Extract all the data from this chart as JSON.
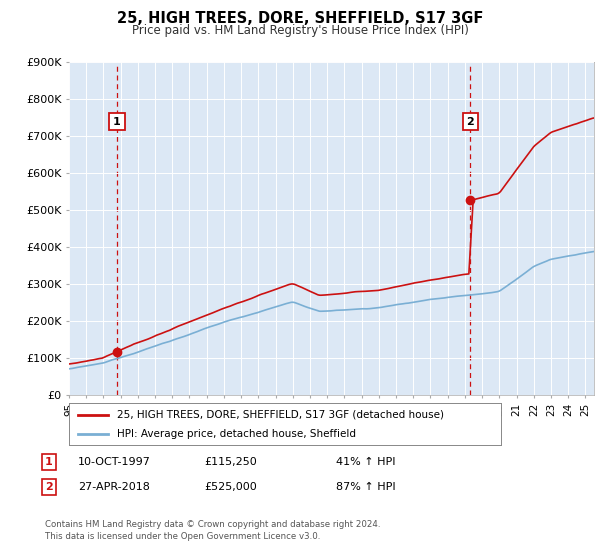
{
  "title": "25, HIGH TREES, DORE, SHEFFIELD, S17 3GF",
  "subtitle": "Price paid vs. HM Land Registry's House Price Index (HPI)",
  "ylim": [
    0,
    900000
  ],
  "yticks": [
    0,
    100000,
    200000,
    300000,
    400000,
    500000,
    600000,
    700000,
    800000,
    900000
  ],
  "ytick_labels": [
    "£0",
    "£100K",
    "£200K",
    "£300K",
    "£400K",
    "£500K",
    "£600K",
    "£700K",
    "£800K",
    "£900K"
  ],
  "sale1_year": 1997.78,
  "sale1_price": 115250,
  "sale2_year": 2018.32,
  "sale2_price": 525000,
  "hpi_line_color": "#7aafd4",
  "price_line_color": "#cc1111",
  "vline_color": "#cc1111",
  "plot_bg_color": "#dce8f5",
  "fig_bg_color": "#ffffff",
  "grid_color": "#ffffff",
  "legend_label_price": "25, HIGH TREES, DORE, SHEFFIELD, S17 3GF (detached house)",
  "legend_label_hpi": "HPI: Average price, detached house, Sheffield",
  "footer_line1": "Contains HM Land Registry data © Crown copyright and database right 2024.",
  "footer_line2": "This data is licensed under the Open Government Licence v3.0."
}
